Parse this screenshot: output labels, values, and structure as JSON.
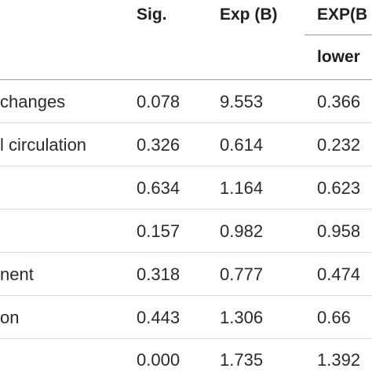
{
  "table": {
    "headers": {
      "sig": "Sig.",
      "expb": "Exp (B)",
      "ci": "EXP(B",
      "ci_lower": "lower"
    },
    "rows": [
      {
        "label": "changes",
        "sig": "0.078",
        "expb": "9.553",
        "lower": "0.366"
      },
      {
        "label": "l circulation",
        "sig": "0.326",
        "expb": "0.614",
        "lower": "0.232"
      },
      {
        "label": "",
        "sig": "0.634",
        "expb": "1.164",
        "lower": "0.623"
      },
      {
        "label": "",
        "sig": "0.157",
        "expb": "0.982",
        "lower": "0.958"
      },
      {
        "label": "nent",
        "sig": "0.318",
        "expb": "0.777",
        "lower": "0.474"
      },
      {
        "label": "on",
        "sig": "0.443",
        "expb": "1.306",
        "lower": "0.66"
      },
      {
        "label": "",
        "sig": "0.000",
        "expb": "1.735",
        "lower": "1.392"
      }
    ]
  }
}
